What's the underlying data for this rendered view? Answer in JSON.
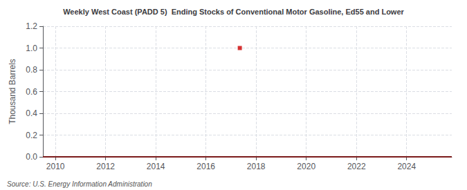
{
  "chart_data": {
    "type": "line",
    "title": "Weekly West Coast (PADD 5)  Ending Stocks of Conventional Motor Gasoline, Ed55 and Lower",
    "ylabel": "Thousand Barrels",
    "annotations": [
      "Source: U.S. Energy Information Administration"
    ],
    "series": [
      {
        "type": "line",
        "color": "#7B1A1A",
        "line_style": "solid",
        "x": [
          2009.5,
          2025.8
        ],
        "values": [
          0.0,
          0.0
        ]
      },
      {
        "type": "scatter",
        "color": "#CC0000",
        "marker": "square",
        "x": [
          2017.35
        ],
        "values": [
          1.0
        ]
      }
    ],
    "xlim": [
      2009.5,
      2025.8
    ],
    "xticks": [
      2010,
      2012,
      2014,
      2016,
      2018,
      2020,
      2022,
      2024
    ],
    "ylim": [
      0.0,
      1.2
    ],
    "yticks": [
      {
        "value": 0.0,
        "label": "0.0"
      },
      0.2,
      0.4,
      0.6,
      0.8,
      {
        "value": 1.0,
        "label": "1.0"
      },
      1.2
    ],
    "grid": true
  }
}
